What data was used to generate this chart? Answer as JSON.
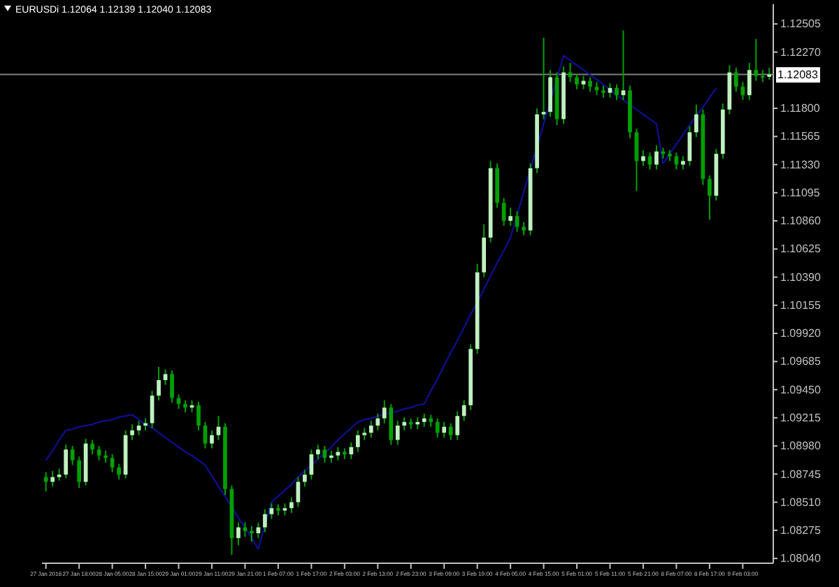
{
  "chart_data": {
    "type": "candlestick",
    "title": "EURUSDi 1.12064 1.12139 1.12040 1.12083",
    "categories": [
      "27 Jan 2016",
      null,
      null,
      null,
      null,
      "27 Jan 18:00",
      null,
      null,
      null,
      null,
      "28 Jan 05:00",
      null,
      null,
      null,
      null,
      "28 Jan 15:00",
      null,
      null,
      null,
      null,
      "29 Jan 01:00",
      null,
      null,
      null,
      null,
      "29 Jan 11:00",
      null,
      null,
      null,
      null,
      "29 Jan 21:00",
      null,
      null,
      null,
      null,
      "1 Feb 07:00",
      null,
      null,
      null,
      null,
      "1 Feb 17:00",
      null,
      null,
      null,
      null,
      "2 Feb 03:00",
      null,
      null,
      null,
      null,
      "2 Feb 13:00",
      null,
      null,
      null,
      null,
      "2 Feb 23:00",
      null,
      null,
      null,
      null,
      "3 Feb 09:00",
      null,
      null,
      null,
      null,
      "3 Feb 19:00",
      null,
      null,
      null,
      null,
      "4 Feb 05:00",
      null,
      null,
      null,
      null,
      "4 Feb 15:00",
      null,
      null,
      null,
      null,
      "5 Feb 01:00",
      null,
      null,
      null,
      null,
      "5 Feb 11:00",
      null,
      null,
      null,
      null,
      "5 Feb 21:00",
      null,
      null,
      null,
      null,
      "8 Feb 07:00",
      null,
      null,
      null,
      null,
      "8 Feb 17:00",
      null,
      null,
      null,
      null,
      "9 Feb 03:00",
      null,
      null,
      null,
      null
    ],
    "color": "#00a000",
    "colors": [
      "#00a000",
      "#c0f0c0",
      "#c0f0c0",
      "#c0f0c0",
      "#00a000",
      "#00a000",
      "#c0f0c0",
      "#00a000",
      "#00a000",
      "#00a000",
      "#00a000",
      "#00a000",
      "#c0f0c0",
      "#c0f0c0",
      "#c0f0c0",
      "#c0f0c0",
      "#c0f0c0",
      "#c0f0c0",
      "#c0f0c0",
      "#00a000",
      "#00a000",
      "#00a000",
      "#c0f0c0",
      "#00a000",
      "#00a000",
      "#c0f0c0",
      "#c0f0c0",
      "#00a000",
      "#00a000",
      "#c0f0c0",
      "#00a000",
      "#00a000",
      "#c0f0c0",
      "#c0f0c0",
      "#c0f0c0",
      "#00a000",
      "#c0f0c0",
      "#c0f0c0",
      "#c0f0c0",
      "#c0f0c0",
      "#c0f0c0",
      "#c0f0c0",
      "#00a000",
      "#c0f0c0",
      "#c0f0c0",
      "#00a000",
      "#c0f0c0",
      "#c0f0c0",
      "#c0f0c0",
      "#c0f0c0",
      "#c0f0c0",
      "#c0f0c0",
      "#00a000",
      "#c0f0c0",
      "#c0f0c0",
      "#00a000",
      "#c0f0c0",
      "#c0f0c0",
      "#00a000",
      "#00a000",
      "#c0f0c0",
      "#00a000",
      "#c0f0c0",
      "#c0f0c0",
      "#c0f0c0",
      "#c0f0c0",
      "#c0f0c0",
      "#c0f0c0",
      "#00a000",
      "#00a000",
      "#c0f0c0",
      "#00a000",
      "#00a000",
      "#c0f0c0",
      "#c0f0c0",
      "#c0f0c0",
      "#c0f0c0",
      "#00a000",
      "#c0f0c0",
      "#00a000",
      "#00a000",
      "#c0f0c0",
      "#00a000",
      "#00a000",
      "#00a000",
      "#c0f0c0",
      "#00a000",
      "#c0f0c0",
      "#00a000",
      "#00a000",
      "#c0f0c0",
      "#00a000",
      "#c0f0c0",
      "#00a000",
      "#00a000",
      "#00a000",
      "#c0f0c0",
      "#c0f0c0",
      "#c0f0c0",
      "#00a000",
      "#00a000",
      "#c0f0c0",
      "#c0f0c0",
      "#c0f0c0",
      "#00a000",
      "#00a000",
      "#c0f0c0",
      "#00a000",
      "#00a000",
      "#c0f0c0"
    ],
    "ohlc": [
      [
        1.0872,
        1.0876,
        1.086,
        1.0868
      ],
      [
        1.0868,
        1.0877,
        1.0864,
        1.0872
      ],
      [
        1.0872,
        1.0879,
        1.0869,
        1.0874
      ],
      [
        1.0874,
        1.0899,
        1.0871,
        1.0895
      ],
      [
        1.0895,
        1.0898,
        1.0882,
        1.0886
      ],
      [
        1.0886,
        1.0889,
        1.0863,
        1.0868
      ],
      [
        1.0868,
        1.0904,
        1.0865,
        1.09
      ],
      [
        1.09,
        1.0903,
        1.0891,
        1.0895
      ],
      [
        1.0895,
        1.0898,
        1.0886,
        1.089
      ],
      [
        1.089,
        1.0894,
        1.0884,
        1.0888
      ],
      [
        1.0888,
        1.0891,
        1.0876,
        1.088
      ],
      [
        1.088,
        1.0883,
        1.087,
        1.0874
      ],
      [
        1.0874,
        1.0911,
        1.0871,
        1.0907
      ],
      [
        1.0907,
        1.0916,
        1.0903,
        1.0911
      ],
      [
        1.0911,
        1.0919,
        1.0907,
        1.0915
      ],
      [
        1.0915,
        1.0921,
        1.0911,
        1.0917
      ],
      [
        1.0917,
        1.0944,
        1.0913,
        1.094
      ],
      [
        1.094,
        1.0964,
        1.0936,
        1.0953
      ],
      [
        1.0953,
        1.0962,
        1.0949,
        1.0958
      ],
      [
        1.0958,
        1.0961,
        1.0934,
        1.0938
      ],
      [
        1.0938,
        1.0941,
        1.0929,
        1.0933
      ],
      [
        1.0933,
        1.0936,
        1.0926,
        1.093
      ],
      [
        1.093,
        1.0936,
        1.0926,
        1.0932
      ],
      [
        1.0932,
        1.0935,
        1.0911,
        1.0915
      ],
      [
        1.0915,
        1.0918,
        1.0896,
        1.09
      ],
      [
        1.09,
        1.0911,
        1.0896,
        1.0907
      ],
      [
        1.0907,
        1.0923,
        1.0903,
        1.0914
      ],
      [
        1.0914,
        1.0917,
        1.0857,
        1.0862
      ],
      [
        1.0862,
        1.0865,
        1.0807,
        1.0821
      ],
      [
        1.0821,
        1.0834,
        1.0815,
        1.083
      ],
      [
        1.083,
        1.0834,
        1.0822,
        1.0827
      ],
      [
        1.0827,
        1.0831,
        1.0818,
        1.0825
      ],
      [
        1.0825,
        1.0834,
        1.0821,
        1.083
      ],
      [
        1.083,
        1.0845,
        1.0826,
        1.0841
      ],
      [
        1.0841,
        1.085,
        1.0837,
        1.0846
      ],
      [
        1.0846,
        1.0849,
        1.084,
        1.0844
      ],
      [
        1.0844,
        1.085,
        1.084,
        1.0846
      ],
      [
        1.0846,
        1.0855,
        1.0842,
        1.0851
      ],
      [
        1.0851,
        1.0872,
        1.0847,
        1.0868
      ],
      [
        1.0868,
        1.0878,
        1.0864,
        1.0874
      ],
      [
        1.0874,
        1.0895,
        1.087,
        1.0891
      ],
      [
        1.0891,
        1.0899,
        1.0887,
        1.0895
      ],
      [
        1.0895,
        1.0898,
        1.0884,
        1.0888
      ],
      [
        1.0888,
        1.0894,
        1.0884,
        1.089
      ],
      [
        1.089,
        1.0897,
        1.0886,
        1.0893
      ],
      [
        1.0893,
        1.0896,
        1.0887,
        1.0891
      ],
      [
        1.0891,
        1.0901,
        1.0887,
        1.0897
      ],
      [
        1.0897,
        1.0911,
        1.0893,
        1.0907
      ],
      [
        1.0907,
        1.0913,
        1.0903,
        1.0909
      ],
      [
        1.0909,
        1.0919,
        1.0905,
        1.0915
      ],
      [
        1.0915,
        1.0925,
        1.0911,
        1.0921
      ],
      [
        1.0921,
        1.0936,
        1.0917,
        1.093
      ],
      [
        1.093,
        1.0933,
        1.0899,
        1.0903
      ],
      [
        1.0903,
        1.0919,
        1.0899,
        1.0915
      ],
      [
        1.0915,
        1.0922,
        1.0911,
        1.0918
      ],
      [
        1.0918,
        1.0921,
        1.0912,
        1.0916
      ],
      [
        1.0916,
        1.0922,
        1.0912,
        1.0918
      ],
      [
        1.0918,
        1.0925,
        1.0914,
        1.0921
      ],
      [
        1.0921,
        1.0924,
        1.0914,
        1.0918
      ],
      [
        1.0918,
        1.0921,
        1.0905,
        1.0909
      ],
      [
        1.0909,
        1.0918,
        1.0905,
        1.0914
      ],
      [
        1.0914,
        1.0917,
        1.0903,
        1.0907
      ],
      [
        1.0907,
        1.0927,
        1.0903,
        1.0923
      ],
      [
        1.0923,
        1.0936,
        1.0919,
        1.0932
      ],
      [
        1.0932,
        1.0983,
        1.0928,
        1.0979
      ],
      [
        1.0979,
        1.105,
        1.0975,
        1.1043
      ],
      [
        1.1043,
        1.1083,
        1.1039,
        1.1072
      ],
      [
        1.1072,
        1.1136,
        1.1068,
        1.113
      ],
      [
        1.113,
        1.1134,
        1.1097,
        1.1101
      ],
      [
        1.1101,
        1.1105,
        1.1082,
        1.1086
      ],
      [
        1.1086,
        1.1097,
        1.1082,
        1.109
      ],
      [
        1.109,
        1.1094,
        1.1077,
        1.1081
      ],
      [
        1.1081,
        1.1085,
        1.1074,
        1.1078
      ],
      [
        1.1078,
        1.1134,
        1.1074,
        1.113
      ],
      [
        1.113,
        1.118,
        1.1126,
        1.1175
      ],
      [
        1.1175,
        1.1239,
        1.1171,
        1.1177
      ],
      [
        1.1177,
        1.1212,
        1.1173,
        1.1206
      ],
      [
        1.1206,
        1.121,
        1.1166,
        1.1171
      ],
      [
        1.1171,
        1.1215,
        1.1167,
        1.121
      ],
      [
        1.121,
        1.1218,
        1.1202,
        1.1206
      ],
      [
        1.1206,
        1.1209,
        1.1196,
        1.12
      ],
      [
        1.12,
        1.1207,
        1.1196,
        1.1203
      ],
      [
        1.1203,
        1.1206,
        1.1194,
        1.1198
      ],
      [
        1.1198,
        1.1202,
        1.1191,
        1.1195
      ],
      [
        1.1195,
        1.1199,
        1.1189,
        1.1193
      ],
      [
        1.1193,
        1.1201,
        1.1189,
        1.1197
      ],
      [
        1.1197,
        1.12,
        1.1187,
        1.1191
      ],
      [
        1.1191,
        1.1245,
        1.1187,
        1.1195
      ],
      [
        1.1195,
        1.1199,
        1.1155,
        1.116
      ],
      [
        1.116,
        1.1163,
        1.1111,
        1.1136
      ],
      [
        1.1136,
        1.1145,
        1.1132,
        1.114
      ],
      [
        1.114,
        1.1143,
        1.1129,
        1.1133
      ],
      [
        1.1133,
        1.1149,
        1.1129,
        1.1144
      ],
      [
        1.1144,
        1.1147,
        1.1138,
        1.1142
      ],
      [
        1.1142,
        1.1145,
        1.1136,
        1.114
      ],
      [
        1.114,
        1.1143,
        1.1129,
        1.1133
      ],
      [
        1.1133,
        1.114,
        1.1129,
        1.1136
      ],
      [
        1.1136,
        1.1165,
        1.1132,
        1.116
      ],
      [
        1.116,
        1.1183,
        1.1156,
        1.1175
      ],
      [
        1.1175,
        1.1179,
        1.1116,
        1.1121
      ],
      [
        1.1121,
        1.1124,
        1.1087,
        1.1107
      ],
      [
        1.1107,
        1.1146,
        1.1103,
        1.1142
      ],
      [
        1.1142,
        1.1184,
        1.1138,
        1.1179
      ],
      [
        1.1179,
        1.1216,
        1.1175,
        1.121
      ],
      [
        1.121,
        1.1214,
        1.1194,
        1.1198
      ],
      [
        1.1198,
        1.1202,
        1.1187,
        1.1191
      ],
      [
        1.1191,
        1.1218,
        1.1187,
        1.1212
      ],
      [
        1.1212,
        1.1238,
        1.1203,
        1.1207
      ],
      [
        1.1207,
        1.1212,
        1.1202,
        1.1206
      ],
      [
        1.12064,
        1.12139,
        1.1204,
        1.12083
      ]
    ],
    "series": [
      {
        "type": "line",
        "color": "#1010a0",
        "values": [
          1.0886,
          1.0894,
          1.0903,
          1.0911,
          1.0912,
          1.0914,
          1.0915,
          1.0916,
          1.0918,
          1.0919,
          1.092,
          1.0922,
          1.0923,
          1.0924,
          1.092,
          1.0916,
          1.0913,
          1.0909,
          1.0905,
          1.0901,
          1.0897,
          1.0893,
          1.089,
          1.0886,
          1.0882,
          1.0873,
          1.0864,
          1.0856,
          1.0847,
          1.0838,
          1.083,
          1.0821,
          1.0812,
          1.0832,
          1.0851,
          1.0856,
          1.0861,
          1.0866,
          1.0872,
          1.0877,
          1.0882,
          1.0887,
          1.0892,
          1.0897,
          1.0903,
          1.0908,
          1.0913,
          1.0918,
          1.092,
          1.0921,
          1.0923,
          1.0924,
          1.0926,
          1.0927,
          1.0929,
          1.093,
          1.0932,
          1.0933,
          1.0944,
          1.0954,
          1.0965,
          1.0976,
          1.0986,
          1.0997,
          1.1008,
          1.1018,
          1.1029,
          1.104,
          1.1051,
          1.1061,
          1.1072,
          1.1091,
          1.111,
          1.1129,
          1.1148,
          1.1167,
          1.1186,
          1.1205,
          1.1224,
          1.122,
          1.1216,
          1.1212,
          1.1208,
          1.1204,
          1.12,
          1.1196,
          1.1191,
          1.1187,
          1.1183,
          1.1179,
          1.1175,
          1.1171,
          1.1167,
          1.1134,
          1.1142,
          1.115,
          1.1158,
          1.1166,
          1.1174,
          1.1181,
          1.1189,
          1.1197,
          null,
          null,
          null,
          null,
          null,
          null,
          null,
          null
        ]
      }
    ],
    "ylim": [
      1.08,
      1.1267
    ],
    "yticks": [
      {
        "value": 1.12505,
        "label": "1.12505"
      },
      {
        "value": 1.1227,
        "label": "1.12270"
      },
      {
        "value": 1.118,
        "label": "1.11800"
      },
      {
        "value": 1.11565,
        "label": "1.11565"
      },
      {
        "value": 1.1133,
        "label": "1.11330"
      },
      {
        "value": 1.11095,
        "label": "1.11095"
      },
      {
        "value": 1.1086,
        "label": "1.10860"
      },
      {
        "value": 1.10625,
        "label": "1.10625"
      },
      {
        "value": 1.1039,
        "label": "1.10390"
      },
      {
        "value": 1.10155,
        "label": "1.10155"
      },
      {
        "value": 1.0992,
        "label": "1.09920"
      },
      {
        "value": 1.09685,
        "label": "1.09685"
      },
      {
        "value": 1.0945,
        "label": "1.09450"
      },
      {
        "value": 1.09215,
        "label": "1.09215"
      },
      {
        "value": 1.0898,
        "label": "1.08980"
      },
      {
        "value": 1.08745,
        "label": "1.08745"
      },
      {
        "value": 1.0851,
        "label": "1.08510"
      },
      {
        "value": 1.08275,
        "label": "1.08275"
      },
      {
        "value": 1.0804,
        "label": "1.08040"
      }
    ],
    "ref_lines": [
      {
        "axis": "y",
        "value": 1.12083,
        "label": "1.12083",
        "color": "#808080"
      }
    ],
    "grid": false
  }
}
